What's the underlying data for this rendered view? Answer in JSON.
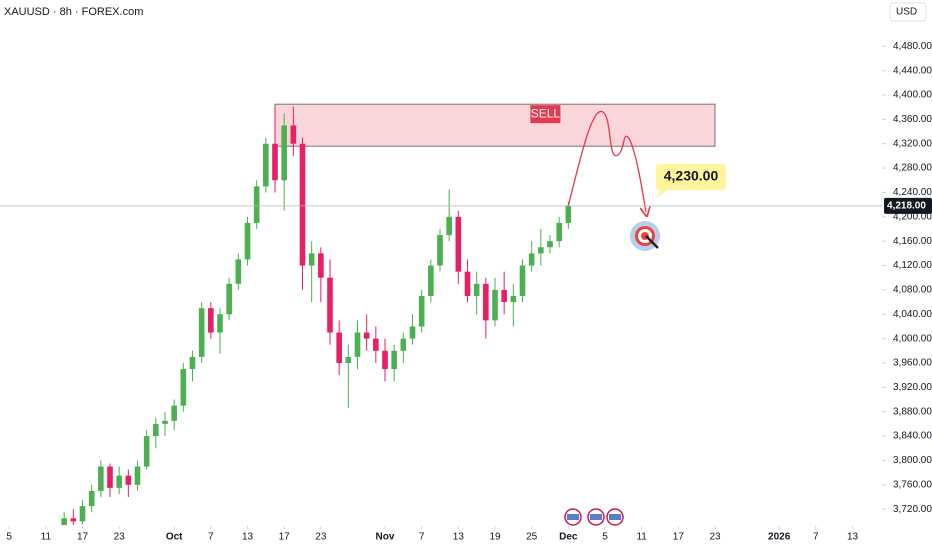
{
  "chart_data": {
    "type": "candlestick",
    "title": "XAUUSD · 8h · FOREX.com",
    "currency_label": "USD",
    "up_color": "#4caf50",
    "down_color": "#e91e63",
    "x": [
      6,
      7,
      8,
      9,
      10,
      11,
      12,
      13,
      14,
      15,
      16,
      17,
      18,
      19,
      20,
      21,
      22,
      23,
      24,
      25,
      26,
      27,
      28,
      29,
      30,
      31,
      32,
      33,
      34,
      35,
      36,
      37,
      38,
      39,
      40,
      41,
      42,
      43,
      44,
      45,
      46,
      47,
      48,
      49,
      50,
      51,
      52,
      53,
      54,
      55,
      56,
      57,
      58,
      59,
      60,
      61
    ],
    "open": [
      3690,
      3705,
      3700,
      3725,
      3750,
      3790,
      3755,
      3775,
      3760,
      3790,
      3840,
      3860,
      3865,
      3890,
      3950,
      3970,
      4050,
      4010,
      4040,
      4090,
      4130,
      4190,
      4250,
      4320,
      4260,
      4350,
      4320,
      4120,
      4140,
      4100,
      4010,
      3960,
      3970,
      4010,
      4000,
      3980,
      3950,
      3980,
      4000,
      4020,
      4070,
      4120,
      4170,
      4200,
      4110,
      4070,
      4090,
      4030,
      4080,
      4060,
      4070,
      4120,
      4140,
      4150,
      4160,
      4190
    ],
    "high": [
      3715,
      3720,
      3735,
      3760,
      3800,
      3795,
      3790,
      3785,
      3800,
      3850,
      3870,
      3880,
      3900,
      3960,
      3980,
      4060,
      4060,
      4050,
      4100,
      4140,
      4200,
      4260,
      4330,
      4380,
      4370,
      4381,
      4330,
      4160,
      4150,
      4130,
      4030,
      3990,
      4030,
      4040,
      4020,
      4000,
      3990,
      4010,
      4040,
      4080,
      4130,
      4180,
      4245,
      4210,
      4130,
      4110,
      4100,
      4100,
      4110,
      4090,
      4130,
      4160,
      4180,
      4170,
      4200,
      4225
    ],
    "low": [
      3680,
      3690,
      3695,
      3715,
      3740,
      3740,
      3745,
      3740,
      3750,
      3785,
      3820,
      3840,
      3850,
      3880,
      3930,
      3960,
      4000,
      3975,
      4030,
      4080,
      4120,
      4180,
      4240,
      4240,
      4210,
      4300,
      4080,
      4060,
      4060,
      3990,
      3940,
      3886,
      3950,
      3980,
      3960,
      3930,
      3930,
      3960,
      3990,
      4010,
      4060,
      4110,
      4160,
      4090,
      4060,
      4040,
      4000,
      4020,
      4040,
      4020,
      4060,
      4110,
      4120,
      4140,
      4150,
      4180
    ],
    "close": [
      3705,
      3700,
      3725,
      3750,
      3790,
      3755,
      3775,
      3760,
      3790,
      3840,
      3860,
      3865,
      3890,
      3950,
      3970,
      4050,
      4010,
      4040,
      4090,
      4130,
      4190,
      4250,
      4320,
      4260,
      4350,
      4320,
      4120,
      4140,
      4100,
      4010,
      3960,
      3970,
      4010,
      4000,
      3980,
      3950,
      3980,
      4000,
      4020,
      4070,
      4120,
      4170,
      4200,
      4110,
      4070,
      4090,
      4030,
      4080,
      4060,
      4070,
      4120,
      4140,
      4150,
      4160,
      4190,
      4218
    ],
    "xlim": [
      -1,
      95
    ],
    "ylim": [
      3694,
      4556
    ],
    "xticks": [
      {
        "value": 0,
        "label": "5"
      },
      {
        "value": 4,
        "label": "11"
      },
      {
        "value": 8,
        "label": "17"
      },
      {
        "value": 12,
        "label": "23"
      },
      {
        "value": 18,
        "label": "Oct"
      },
      {
        "value": 22,
        "label": "7"
      },
      {
        "value": 26,
        "label": "13"
      },
      {
        "value": 30,
        "label": "17"
      },
      {
        "value": 34,
        "label": "23"
      },
      {
        "value": 41,
        "label": "Nov"
      },
      {
        "value": 45,
        "label": "7"
      },
      {
        "value": 49,
        "label": "13"
      },
      {
        "value": 53,
        "label": "19"
      },
      {
        "value": 57,
        "label": "25"
      },
      {
        "value": 61,
        "label": "Dec"
      },
      {
        "value": 65,
        "label": "5"
      },
      {
        "value": 69,
        "label": "11"
      },
      {
        "value": 73,
        "label": "17"
      },
      {
        "value": 77,
        "label": "23"
      },
      {
        "value": 84,
        "label": "2026"
      },
      {
        "value": 88,
        "label": "7"
      },
      {
        "value": 92,
        "label": "13"
      }
    ],
    "yticks": [
      {
        "value": 3720,
        "label": "3,720.00"
      },
      {
        "value": 3760,
        "label": "3,760.00"
      },
      {
        "value": 3800,
        "label": "3,800.00"
      },
      {
        "value": 3840,
        "label": "3,840.00"
      },
      {
        "value": 3880,
        "label": "3,880.00"
      },
      {
        "value": 3920,
        "label": "3,920.00"
      },
      {
        "value": 3960,
        "label": "3,960.00"
      },
      {
        "value": 4000,
        "label": "4,000.00"
      },
      {
        "value": 4040,
        "label": "4,040.00"
      },
      {
        "value": 4080,
        "label": "4,080.00"
      },
      {
        "value": 4120,
        "label": "4,120.00"
      },
      {
        "value": 4160,
        "label": "4,160.00"
      },
      {
        "value": 4200,
        "label": "4,200.00"
      },
      {
        "value": 4240,
        "label": "4,240.00"
      },
      {
        "value": 4280,
        "label": "4,280.00"
      },
      {
        "value": 4320,
        "label": "4,320.00"
      },
      {
        "value": 4360,
        "label": "4,360.00"
      },
      {
        "value": 4400,
        "label": "4,400.00"
      },
      {
        "value": 4440,
        "label": "4,440.00"
      },
      {
        "value": 4480,
        "label": "4,480.00"
      }
    ],
    "last_price": {
      "value": 4218,
      "label": "4,218.00"
    },
    "zone": {
      "x": [
        29,
        77
      ],
      "y": [
        4316,
        4385
      ],
      "color": "#f8c8cf"
    },
    "zone_label": "SELL",
    "target_label": "4,230.00"
  }
}
